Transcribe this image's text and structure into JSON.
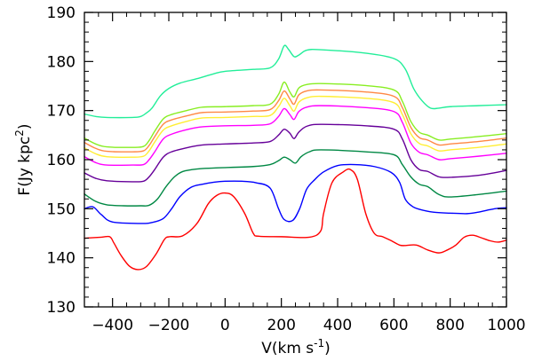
{
  "chart_data": {
    "type": "line",
    "title": "",
    "xlabel": {
      "base": "V(km s",
      "sup": "-1",
      "tail": ")"
    },
    "ylabel": {
      "base": "F(Jy  kpc",
      "sup": "2",
      "tail": ")"
    },
    "xlim": [
      -500,
      1000
    ],
    "ylim": [
      130,
      190
    ],
    "x_ticks": [
      -400,
      -200,
      0,
      200,
      400,
      600,
      800,
      1000
    ],
    "y_ticks": [
      130,
      140,
      150,
      160,
      170,
      180,
      190
    ],
    "x_tick_labels": [
      "−400",
      "−200",
      "0",
      "200",
      "400",
      "600",
      "800",
      "1000"
    ],
    "y_tick_labels": [
      "130",
      "140",
      "150",
      "160",
      "170",
      "180",
      "190"
    ],
    "grid": false,
    "series": [
      {
        "color": "#ff0000",
        "points": [
          [
            -500,
            144
          ],
          [
            -440,
            144.2
          ],
          [
            -410,
            144.3
          ],
          [
            -395,
            143
          ],
          [
            -370,
            140.5
          ],
          [
            -340,
            138.3
          ],
          [
            -310,
            137.6
          ],
          [
            -280,
            138.2
          ],
          [
            -245,
            140.8
          ],
          [
            -215,
            143.8
          ],
          [
            -195,
            144.3
          ],
          [
            -150,
            144.5
          ],
          [
            -100,
            147
          ],
          [
            -60,
            151
          ],
          [
            -30,
            152.7
          ],
          [
            0,
            153.2
          ],
          [
            30,
            152.5
          ],
          [
            70,
            149
          ],
          [
            100,
            145
          ],
          [
            120,
            144.4
          ],
          [
            200,
            144.3
          ],
          [
            300,
            144.2
          ],
          [
            340,
            145.5
          ],
          [
            350,
            149
          ],
          [
            380,
            155.3
          ],
          [
            420,
            157.5
          ],
          [
            445,
            158
          ],
          [
            470,
            156
          ],
          [
            500,
            149
          ],
          [
            530,
            145
          ],
          [
            560,
            144.3
          ],
          [
            590,
            143.5
          ],
          [
            620,
            142.6
          ],
          [
            640,
            142.5
          ],
          [
            680,
            142.6
          ],
          [
            720,
            141.6
          ],
          [
            760,
            141
          ],
          [
            790,
            141.6
          ],
          [
            820,
            142.6
          ],
          [
            850,
            144.2
          ],
          [
            880,
            144.6
          ],
          [
            910,
            144.1
          ],
          [
            940,
            143.5
          ],
          [
            970,
            143.2
          ],
          [
            1000,
            143.6
          ]
        ]
      },
      {
        "color": "#0000ff",
        "points": [
          [
            -500,
            150
          ],
          [
            -470,
            150.4
          ],
          [
            -440,
            148.8
          ],
          [
            -400,
            147.3
          ],
          [
            -300,
            147
          ],
          [
            -260,
            147.2
          ],
          [
            -220,
            148
          ],
          [
            -190,
            150
          ],
          [
            -160,
            152.5
          ],
          [
            -120,
            154.4
          ],
          [
            -80,
            155
          ],
          [
            -40,
            155.4
          ],
          [
            0,
            155.6
          ],
          [
            60,
            155.6
          ],
          [
            110,
            155.3
          ],
          [
            160,
            154.2
          ],
          [
            190,
            150
          ],
          [
            210,
            147.8
          ],
          [
            240,
            147.6
          ],
          [
            265,
            150
          ],
          [
            290,
            154
          ],
          [
            320,
            156
          ],
          [
            350,
            157.5
          ],
          [
            400,
            158.8
          ],
          [
            460,
            159
          ],
          [
            530,
            158.6
          ],
          [
            590,
            157.4
          ],
          [
            620,
            155.4
          ],
          [
            640,
            152
          ],
          [
            665,
            150.5
          ],
          [
            690,
            149.9
          ],
          [
            740,
            149.3
          ],
          [
            800,
            149.1
          ],
          [
            860,
            149
          ],
          [
            900,
            149.3
          ],
          [
            940,
            149.8
          ],
          [
            970,
            150.1
          ],
          [
            1000,
            150.2
          ]
        ]
      },
      {
        "color": "#008844",
        "points": [
          [
            -500,
            153
          ],
          [
            -460,
            151.5
          ],
          [
            -420,
            150.8
          ],
          [
            -360,
            150.6
          ],
          [
            -300,
            150.6
          ],
          [
            -270,
            150.7
          ],
          [
            -240,
            152
          ],
          [
            -210,
            154.5
          ],
          [
            -180,
            156.5
          ],
          [
            -150,
            157.6
          ],
          [
            -100,
            158.1
          ],
          [
            -40,
            158.3
          ],
          [
            100,
            158.6
          ],
          [
            160,
            159
          ],
          [
            190,
            159.8
          ],
          [
            210,
            160.5
          ],
          [
            230,
            160
          ],
          [
            250,
            159.3
          ],
          [
            270,
            160.6
          ],
          [
            300,
            161.6
          ],
          [
            340,
            162
          ],
          [
            500,
            161.6
          ],
          [
            600,
            161
          ],
          [
            630,
            159
          ],
          [
            660,
            156.5
          ],
          [
            690,
            155
          ],
          [
            720,
            154.5
          ],
          [
            760,
            152.9
          ],
          [
            800,
            152.4
          ],
          [
            900,
            152.9
          ],
          [
            1000,
            153.6
          ]
        ]
      },
      {
        "color": "#660099",
        "points": [
          [
            -500,
            157.3
          ],
          [
            -460,
            156.2
          ],
          [
            -420,
            155.7
          ],
          [
            -330,
            155.5
          ],
          [
            -290,
            155.6
          ],
          [
            -270,
            156.5
          ],
          [
            -250,
            158
          ],
          [
            -220,
            160.5
          ],
          [
            -190,
            161.6
          ],
          [
            -130,
            162.5
          ],
          [
            -80,
            163
          ],
          [
            0,
            163.2
          ],
          [
            100,
            163.4
          ],
          [
            160,
            163.7
          ],
          [
            190,
            165
          ],
          [
            210,
            166.2
          ],
          [
            230,
            165.4
          ],
          [
            245,
            164.3
          ],
          [
            262,
            165.6
          ],
          [
            290,
            166.8
          ],
          [
            340,
            167.2
          ],
          [
            500,
            166.9
          ],
          [
            600,
            166.2
          ],
          [
            630,
            164.2
          ],
          [
            660,
            160
          ],
          [
            690,
            158
          ],
          [
            720,
            157.6
          ],
          [
            760,
            156.5
          ],
          [
            800,
            156.4
          ],
          [
            900,
            156.8
          ],
          [
            1000,
            157.8
          ]
        ]
      },
      {
        "color": "#ff00ff",
        "points": [
          [
            -500,
            160.6
          ],
          [
            -460,
            159.4
          ],
          [
            -420,
            158.9
          ],
          [
            -330,
            158.9
          ],
          [
            -290,
            159
          ],
          [
            -270,
            160
          ],
          [
            -250,
            161.6
          ],
          [
            -220,
            164.2
          ],
          [
            -190,
            165.2
          ],
          [
            -130,
            166.2
          ],
          [
            -80,
            166.7
          ],
          [
            0,
            166.9
          ],
          [
            100,
            167
          ],
          [
            160,
            167.3
          ],
          [
            190,
            168.8
          ],
          [
            210,
            170.4
          ],
          [
            230,
            169.2
          ],
          [
            245,
            168.2
          ],
          [
            262,
            169.8
          ],
          [
            290,
            170.7
          ],
          [
            340,
            171
          ],
          [
            500,
            170.6
          ],
          [
            600,
            169.8
          ],
          [
            630,
            167.6
          ],
          [
            660,
            163.4
          ],
          [
            690,
            161.5
          ],
          [
            720,
            161
          ],
          [
            760,
            160
          ],
          [
            800,
            160.2
          ],
          [
            900,
            160.7
          ],
          [
            1000,
            161.3
          ]
        ]
      },
      {
        "color": "#ffee33",
        "points": [
          [
            -500,
            162.4
          ],
          [
            -460,
            161.2
          ],
          [
            -420,
            160.6
          ],
          [
            -330,
            160.5
          ],
          [
            -290,
            160.7
          ],
          [
            -270,
            161.8
          ],
          [
            -250,
            163.6
          ],
          [
            -220,
            166
          ],
          [
            -190,
            166.9
          ],
          [
            -130,
            167.9
          ],
          [
            -80,
            168.5
          ],
          [
            0,
            168.6
          ],
          [
            100,
            168.8
          ],
          [
            160,
            169
          ],
          [
            190,
            170.8
          ],
          [
            210,
            172.5
          ],
          [
            230,
            171
          ],
          [
            245,
            169.9
          ],
          [
            262,
            171.7
          ],
          [
            290,
            172.6
          ],
          [
            340,
            172.9
          ],
          [
            500,
            172.5
          ],
          [
            600,
            171.6
          ],
          [
            630,
            169.2
          ],
          [
            660,
            165.3
          ],
          [
            690,
            163.3
          ],
          [
            720,
            162.8
          ],
          [
            760,
            161.8
          ],
          [
            800,
            162
          ],
          [
            900,
            162.5
          ],
          [
            1000,
            163.2
          ]
        ]
      },
      {
        "color": "#ff8844",
        "points": [
          [
            -500,
            163.5
          ],
          [
            -460,
            162.3
          ],
          [
            -420,
            161.7
          ],
          [
            -330,
            161.6
          ],
          [
            -290,
            161.8
          ],
          [
            -270,
            162.9
          ],
          [
            -250,
            164.7
          ],
          [
            -220,
            167.2
          ],
          [
            -190,
            168.1
          ],
          [
            -130,
            169
          ],
          [
            -80,
            169.6
          ],
          [
            0,
            169.7
          ],
          [
            100,
            169.9
          ],
          [
            160,
            170.2
          ],
          [
            190,
            172
          ],
          [
            210,
            174
          ],
          [
            230,
            172.4
          ],
          [
            245,
            171.3
          ],
          [
            262,
            173.2
          ],
          [
            290,
            174
          ],
          [
            340,
            174.2
          ],
          [
            500,
            173.8
          ],
          [
            600,
            172.9
          ],
          [
            630,
            170.6
          ],
          [
            660,
            166.6
          ],
          [
            690,
            164.5
          ],
          [
            720,
            164
          ],
          [
            760,
            163
          ],
          [
            800,
            163.2
          ],
          [
            900,
            163.7
          ],
          [
            1000,
            164.4
          ]
        ]
      },
      {
        "color": "#88ee22",
        "points": [
          [
            -500,
            164.4
          ],
          [
            -460,
            163.2
          ],
          [
            -420,
            162.6
          ],
          [
            -330,
            162.5
          ],
          [
            -290,
            162.7
          ],
          [
            -270,
            163.9
          ],
          [
            -250,
            165.8
          ],
          [
            -220,
            168.3
          ],
          [
            -190,
            169.2
          ],
          [
            -130,
            170.1
          ],
          [
            -80,
            170.7
          ],
          [
            0,
            170.8
          ],
          [
            100,
            171
          ],
          [
            160,
            171.3
          ],
          [
            190,
            173.3
          ],
          [
            210,
            175.8
          ],
          [
            230,
            173.8
          ],
          [
            245,
            172.8
          ],
          [
            262,
            174.6
          ],
          [
            290,
            175.3
          ],
          [
            340,
            175.5
          ],
          [
            500,
            175.1
          ],
          [
            600,
            174.2
          ],
          [
            630,
            171.9
          ],
          [
            660,
            167.8
          ],
          [
            690,
            165.6
          ],
          [
            720,
            165
          ],
          [
            760,
            164
          ],
          [
            800,
            164.2
          ],
          [
            900,
            164.7
          ],
          [
            1000,
            165.3
          ]
        ]
      },
      {
        "color": "#22ee99",
        "points": [
          [
            -500,
            169.3
          ],
          [
            -460,
            168.8
          ],
          [
            -420,
            168.6
          ],
          [
            -330,
            168.6
          ],
          [
            -300,
            168.8
          ],
          [
            -280,
            169.5
          ],
          [
            -260,
            170.5
          ],
          [
            -230,
            173
          ],
          [
            -200,
            174.5
          ],
          [
            -160,
            175.6
          ],
          [
            -100,
            176.5
          ],
          [
            -40,
            177.5
          ],
          [
            0,
            178
          ],
          [
            100,
            178.4
          ],
          [
            160,
            178.7
          ],
          [
            190,
            180.5
          ],
          [
            210,
            183.2
          ],
          [
            225,
            182.5
          ],
          [
            245,
            181
          ],
          [
            262,
            181.3
          ],
          [
            290,
            182.3
          ],
          [
            340,
            182.4
          ],
          [
            500,
            181.7
          ],
          [
            600,
            180.6
          ],
          [
            640,
            178.5
          ],
          [
            670,
            174.5
          ],
          [
            700,
            172
          ],
          [
            730,
            170.5
          ],
          [
            760,
            170.5
          ],
          [
            800,
            170.8
          ],
          [
            900,
            171
          ],
          [
            1000,
            171.2
          ]
        ]
      }
    ]
  }
}
